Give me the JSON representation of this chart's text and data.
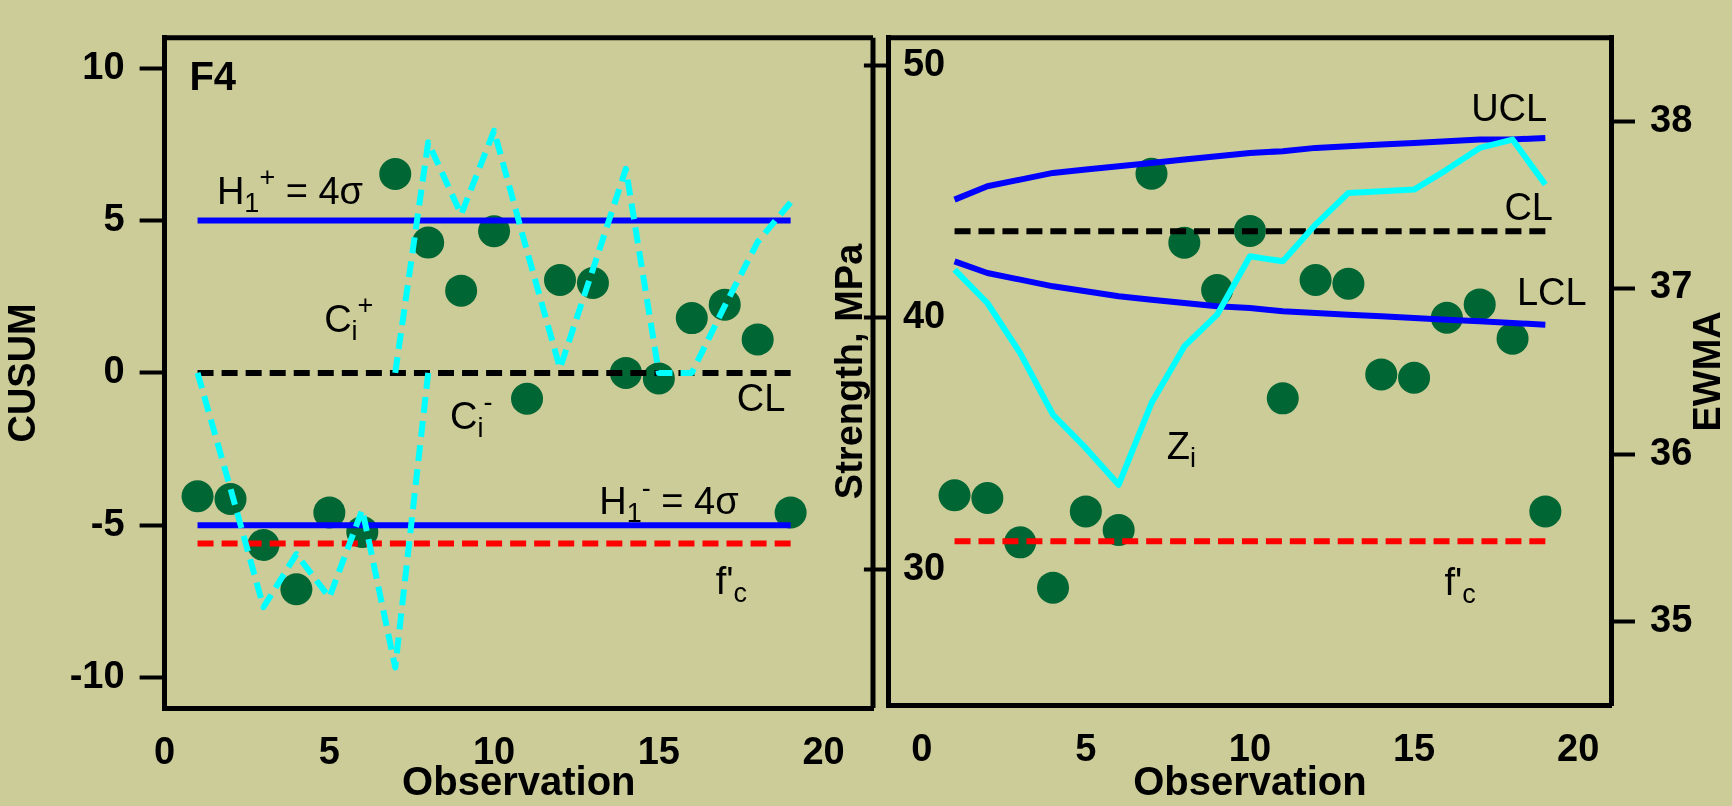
{
  "chart_data": [
    {
      "type": "scatter",
      "xlabel": "Observation",
      "ylabel": "CUSUM",
      "xlim": [
        0,
        21.5
      ],
      "xticks": [
        0,
        5,
        10,
        15,
        20
      ],
      "ylim": [
        -11,
        11
      ],
      "yticks": [
        -10,
        -5,
        0,
        5,
        10
      ],
      "annotations": [
        "F4",
        "H$_{1}$$^{+}$ = 4σ",
        "C$_{i}$$^{+}$",
        "C$_{i}$$^{-}$",
        "CL",
        "H$_{1}$$^{-}$ = 4σ",
        "f'$_{c}$"
      ],
      "series": [
        {
          "marker": "circle",
          "color": "#006633",
          "x": [
            1,
            2,
            3,
            4,
            5,
            6,
            7,
            8,
            9,
            10,
            11,
            12,
            13,
            14,
            15,
            16,
            17,
            18,
            19
          ],
          "values": [
            -4.05,
            -4.14,
            -5.65,
            -7.1,
            -4.58,
            -5.22,
            6.53,
            4.28,
            2.7,
            4.65,
            -0.85,
            3.05,
            2.95,
            0,
            -0.18,
            1.8,
            2.24,
            1.1,
            -4.58
          ]
        },
        {
          "type": "line",
          "line_style": "dashed",
          "color": "#00ffff",
          "x": [
            7,
            8,
            9,
            10,
            11,
            12,
            13,
            14,
            15,
            16,
            17,
            18,
            19
          ],
          "values": [
            0,
            7.57,
            5.2,
            7.95,
            4.0,
            0.15,
            3.4,
            6.7,
            0,
            0,
            2.2,
            4.3,
            5.6
          ]
        },
        {
          "type": "line",
          "line_style": "dashed",
          "color": "#00ffff",
          "x": [
            1,
            2,
            3,
            4,
            5,
            6,
            7,
            8
          ],
          "values": [
            0,
            -3.8,
            -7.69,
            -5.95,
            -7.37,
            -4.49,
            -9.67,
            0
          ]
        },
        {
          "type": "line",
          "line_style": "solid",
          "color": "#0000ff",
          "x": [
            1,
            19
          ],
          "values": [
            5,
            5
          ]
        },
        {
          "type": "line",
          "line_style": "solid",
          "color": "#0000ff",
          "x": [
            1,
            19
          ],
          "values": [
            -5,
            -5
          ]
        },
        {
          "type": "line",
          "line_style": "dashed",
          "color": "#000000",
          "x": [
            1,
            19
          ],
          "values": [
            0,
            0
          ]
        },
        {
          "type": "line",
          "line_style": "dashed",
          "color": "#ff0000",
          "x": [
            1,
            19
          ],
          "values": [
            -5.6,
            -5.6
          ]
        }
      ]
    },
    {
      "type": "scatter",
      "xlabel": "Observation",
      "ylabel": "Strength, MPa",
      "y2label": "EWMA",
      "xlim": [
        -1,
        21
      ],
      "xticks": [
        0,
        5,
        10,
        15,
        20
      ],
      "ylim": [
        24.6,
        51.1
      ],
      "yticks": [
        30,
        40,
        50
      ],
      "y2lim": [
        34.5,
        38.5
      ],
      "y2ticks": [
        35,
        36,
        37,
        38
      ],
      "annotations": [
        "UCL",
        "CL",
        "LCL",
        "Z$_{i}$",
        "f'$_{c}$"
      ],
      "series": [
        {
          "marker": "circle",
          "color": "#006633",
          "x": [
            1,
            2,
            3,
            4,
            5,
            6,
            7,
            8,
            9,
            10,
            11,
            12,
            13,
            14,
            15,
            16,
            17,
            18,
            19
          ],
          "values": [
            32.93,
            32.82,
            31.06,
            29.26,
            32.29,
            31.55,
            45.7,
            42.96,
            41.08,
            43.43,
            36.78,
            41.48,
            41.33,
            37.73,
            37.6,
            39.98,
            40.51,
            39.15,
            32.29
          ]
        },
        {
          "type": "line",
          "axis": "y2",
          "line_style": "solid",
          "color": "#00ffff",
          "x": [
            1,
            2,
            3,
            4,
            5,
            6,
            7,
            8,
            9,
            10,
            11,
            12,
            13,
            14,
            15,
            16,
            17,
            18,
            19
          ],
          "values": [
            37.11,
            36.91,
            36.61,
            36.24,
            36.04,
            35.82,
            36.31,
            36.65,
            36.84,
            37.19,
            37.16,
            37.38,
            37.57,
            37.58,
            37.59,
            37.71,
            37.84,
            37.89,
            37.62
          ]
        },
        {
          "type": "line",
          "axis": "y2",
          "line_style": "solid",
          "color": "#0000ff",
          "x": [
            1,
            2,
            3,
            4,
            5,
            6,
            7,
            8,
            9,
            10,
            11,
            12,
            13,
            14,
            15,
            16,
            17,
            18,
            19
          ],
          "values": [
            37.53,
            37.61,
            37.65,
            37.69,
            37.71,
            37.73,
            37.75,
            37.77,
            37.79,
            37.81,
            37.82,
            37.84,
            37.85,
            37.86,
            37.87,
            37.88,
            37.89,
            37.89,
            37.9
          ]
        },
        {
          "type": "line",
          "axis": "y2",
          "line_style": "solid",
          "color": "#0000ff",
          "x": [
            1,
            2,
            3,
            4,
            5,
            6,
            7,
            8,
            9,
            10,
            11,
            12,
            13,
            14,
            15,
            16,
            17,
            18,
            19
          ],
          "values": [
            37.16,
            37.09,
            37.05,
            37.01,
            36.98,
            36.95,
            36.93,
            36.91,
            36.89,
            36.88,
            36.86,
            36.85,
            36.84,
            36.83,
            36.82,
            36.81,
            36.8,
            36.79,
            36.78
          ]
        },
        {
          "type": "line",
          "axis": "y2",
          "line_style": "dashed",
          "color": "#000000",
          "x": [
            1,
            19
          ],
          "values": [
            37.34,
            37.34
          ]
        },
        {
          "type": "line",
          "line_style": "dashed",
          "color": "#ff0000",
          "x": [
            1,
            19
          ],
          "values": [
            31.1,
            31.1
          ]
        }
      ]
    }
  ]
}
